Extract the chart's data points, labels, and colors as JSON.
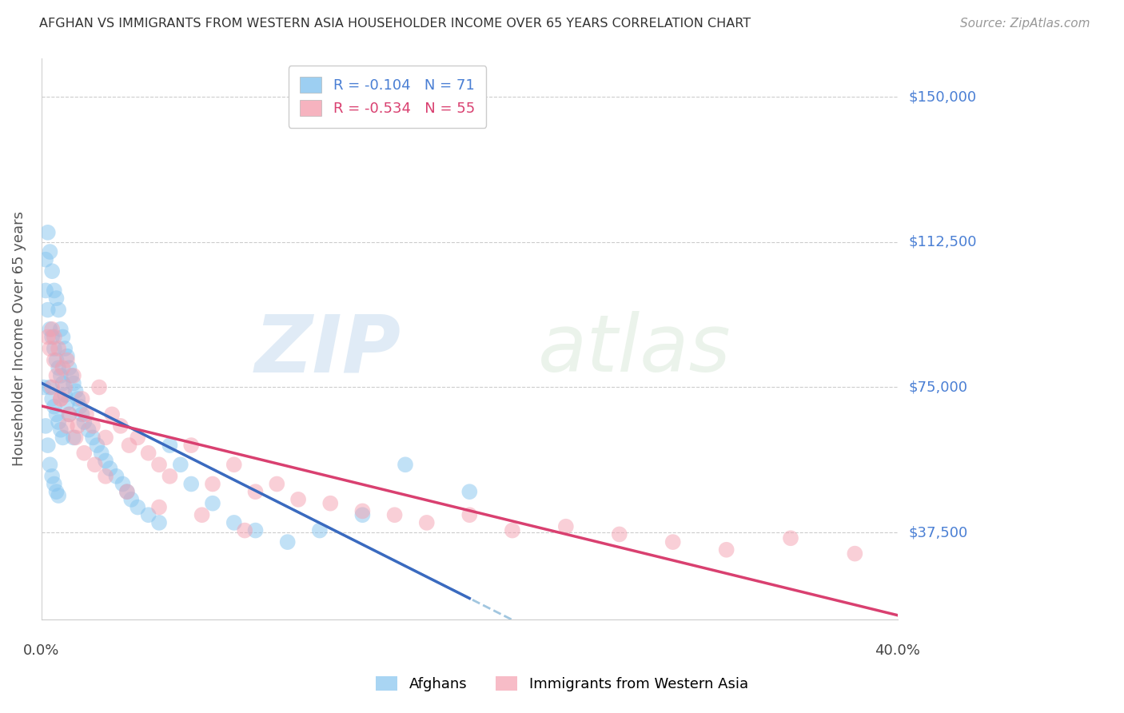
{
  "title": "AFGHAN VS IMMIGRANTS FROM WESTERN ASIA HOUSEHOLDER INCOME OVER 65 YEARS CORRELATION CHART",
  "source": "Source: ZipAtlas.com",
  "ylabel": "Householder Income Over 65 years",
  "ytick_labels": [
    "$150,000",
    "$112,500",
    "$75,000",
    "$37,500"
  ],
  "ytick_values": [
    150000,
    112500,
    75000,
    37500
  ],
  "ymin": 15000,
  "ymax": 160000,
  "xmin": 0.0,
  "xmax": 0.4,
  "legend_r1": "R = -0.104   N = 71",
  "legend_r2": "R = -0.534   N = 55",
  "legend_label1": "Afghans",
  "legend_label2": "Immigrants from Western Asia",
  "watermark_zip": "ZIP",
  "watermark_atlas": "atlas",
  "color_blue": "#85c4ef",
  "color_pink": "#f4a0b0",
  "color_blue_line": "#3a6abf",
  "color_pink_line": "#d94070",
  "color_blue_dash": "#8ab8d8",
  "color_ytick": "#4a7fd4",
  "afghans_x": [
    0.001,
    0.002,
    0.002,
    0.002,
    0.003,
    0.003,
    0.003,
    0.004,
    0.004,
    0.004,
    0.004,
    0.005,
    0.005,
    0.005,
    0.005,
    0.006,
    0.006,
    0.006,
    0.006,
    0.007,
    0.007,
    0.007,
    0.007,
    0.008,
    0.008,
    0.008,
    0.008,
    0.009,
    0.009,
    0.009,
    0.01,
    0.01,
    0.01,
    0.011,
    0.011,
    0.012,
    0.012,
    0.013,
    0.013,
    0.014,
    0.015,
    0.015,
    0.016,
    0.017,
    0.018,
    0.019,
    0.02,
    0.022,
    0.024,
    0.026,
    0.028,
    0.03,
    0.032,
    0.035,
    0.038,
    0.04,
    0.042,
    0.045,
    0.05,
    0.055,
    0.06,
    0.065,
    0.07,
    0.08,
    0.09,
    0.1,
    0.115,
    0.13,
    0.15,
    0.17,
    0.2
  ],
  "afghans_y": [
    75000,
    108000,
    100000,
    65000,
    115000,
    95000,
    60000,
    110000,
    90000,
    75000,
    55000,
    105000,
    88000,
    72000,
    52000,
    100000,
    85000,
    70000,
    50000,
    98000,
    82000,
    68000,
    48000,
    95000,
    80000,
    66000,
    47000,
    90000,
    78000,
    64000,
    88000,
    76000,
    62000,
    85000,
    73000,
    83000,
    71000,
    80000,
    68000,
    78000,
    76000,
    62000,
    74000,
    72000,
    70000,
    68000,
    66000,
    64000,
    62000,
    60000,
    58000,
    56000,
    54000,
    52000,
    50000,
    48000,
    46000,
    44000,
    42000,
    40000,
    60000,
    55000,
    50000,
    45000,
    40000,
    38000,
    35000,
    38000,
    42000,
    55000,
    48000
  ],
  "western_asia_x": [
    0.003,
    0.004,
    0.005,
    0.005,
    0.006,
    0.007,
    0.008,
    0.009,
    0.01,
    0.011,
    0.012,
    0.013,
    0.015,
    0.017,
    0.019,
    0.021,
    0.024,
    0.027,
    0.03,
    0.033,
    0.037,
    0.041,
    0.045,
    0.05,
    0.055,
    0.06,
    0.07,
    0.08,
    0.09,
    0.1,
    0.11,
    0.12,
    0.135,
    0.15,
    0.165,
    0.18,
    0.2,
    0.22,
    0.245,
    0.27,
    0.295,
    0.32,
    0.35,
    0.38,
    0.006,
    0.009,
    0.012,
    0.016,
    0.02,
    0.025,
    0.03,
    0.04,
    0.055,
    0.075,
    0.095
  ],
  "western_asia_y": [
    88000,
    85000,
    90000,
    75000,
    82000,
    78000,
    85000,
    72000,
    80000,
    75000,
    82000,
    68000,
    78000,
    65000,
    72000,
    68000,
    65000,
    75000,
    62000,
    68000,
    65000,
    60000,
    62000,
    58000,
    55000,
    52000,
    60000,
    50000,
    55000,
    48000,
    50000,
    46000,
    45000,
    43000,
    42000,
    40000,
    42000,
    38000,
    39000,
    37000,
    35000,
    33000,
    36000,
    32000,
    88000,
    72000,
    65000,
    62000,
    58000,
    55000,
    52000,
    48000,
    44000,
    42000,
    38000
  ]
}
